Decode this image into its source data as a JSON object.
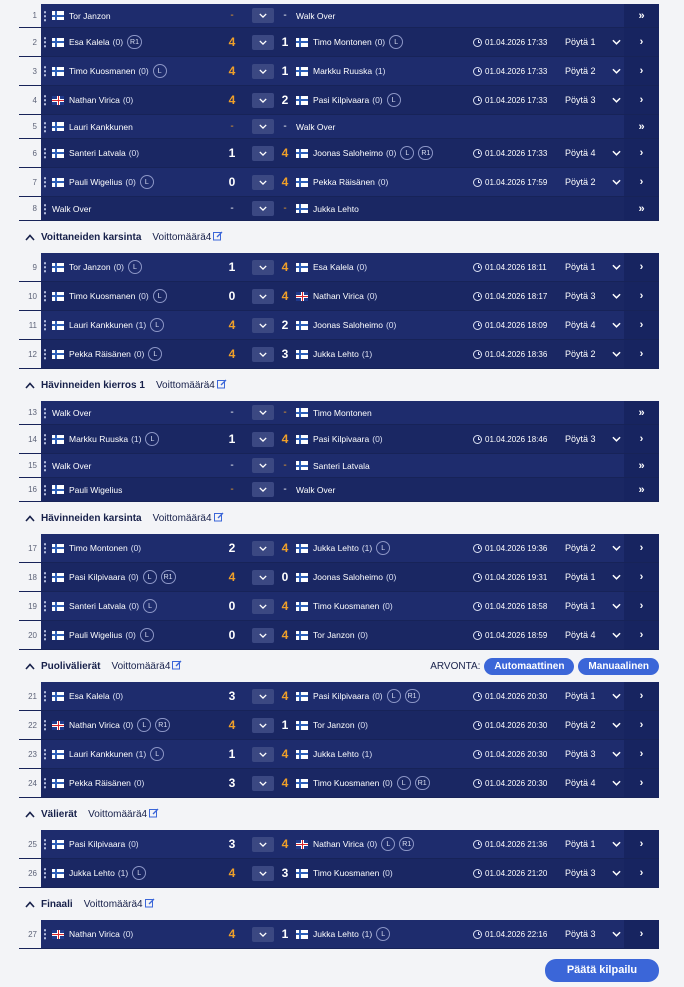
{
  "sections": [
    {
      "title": "",
      "wins": "",
      "matches": [
        {
          "n": "1",
          "p1": {
            "name": "Tor Janzon",
            "flag": "fi"
          },
          "s1": "-",
          "s2": "-",
          "p2": {
            "name": "Walk Over",
            "walkover": true
          },
          "wo": true
        },
        {
          "n": "2",
          "p1": {
            "name": "Esa Kalela",
            "flag": "fi",
            "count": "(0)",
            "badges": [
              "R1"
            ]
          },
          "s1": "4",
          "s2": "1",
          "p2": {
            "name": "Timo Montonen",
            "flag": "fi",
            "count": "(0)",
            "badges": [
              "L"
            ]
          },
          "time": "01.04.2026 17:33",
          "table": "Pöytä 1",
          "tall": true
        },
        {
          "n": "3",
          "p1": {
            "name": "Timo Kuosmanen",
            "flag": "fi",
            "count": "(0)",
            "badges": [
              "L"
            ]
          },
          "s1": "4",
          "s2": "1",
          "p2": {
            "name": "Markku Ruuska",
            "flag": "fi",
            "count": "(1)"
          },
          "time": "01.04.2026 17:33",
          "table": "Pöytä 2",
          "tall": true
        },
        {
          "n": "4",
          "p1": {
            "name": "Nathan Virica",
            "flag": "uk",
            "count": "(0)"
          },
          "s1": "4",
          "s2": "2",
          "p2": {
            "name": "Pasi Kilpivaara",
            "flag": "fi",
            "count": "(0)",
            "badges": [
              "L"
            ]
          },
          "time": "01.04.2026 17:33",
          "table": "Pöytä 3",
          "tall": true
        },
        {
          "n": "5",
          "p1": {
            "name": "Lauri Kankkunen",
            "flag": "fi"
          },
          "s1": "-",
          "s2": "-",
          "p2": {
            "name": "Walk Over",
            "walkover": true
          },
          "wo": true
        },
        {
          "n": "6",
          "p1": {
            "name": "Santeri Latvala",
            "flag": "fi",
            "count": "(0)"
          },
          "s1": "1",
          "s2": "4",
          "p2": {
            "name": "Joonas Saloheimo",
            "flag": "fi",
            "count": "(0)",
            "badges": [
              "L",
              "R1"
            ]
          },
          "time": "01.04.2026 17:33",
          "table": "Pöytä 4",
          "tall": true
        },
        {
          "n": "7",
          "p1": {
            "name": "Pauli Wigelius",
            "flag": "fi",
            "count": "(0)",
            "badges": [
              "L"
            ]
          },
          "s1": "0",
          "s2": "4",
          "p2": {
            "name": "Pekka Räisänen",
            "flag": "fi",
            "count": "(0)"
          },
          "time": "01.04.2026 17:59",
          "table": "Pöytä 2",
          "tall": true
        },
        {
          "n": "8",
          "p1": {
            "name": "Walk Over",
            "walkover": true
          },
          "s1": "-",
          "s2": "-",
          "p2": {
            "name": "Jukka Lehto",
            "flag": "fi"
          },
          "wo": true
        }
      ]
    },
    {
      "title": "Voittaneiden karsinta",
      "wins": "Voittomäärä4",
      "matches": [
        {
          "n": "9",
          "p1": {
            "name": "Tor Janzon",
            "flag": "fi",
            "count": "(0)",
            "badges": [
              "L"
            ]
          },
          "s1": "1",
          "s2": "4",
          "p2": {
            "name": "Esa Kalela",
            "flag": "fi",
            "count": "(0)"
          },
          "time": "01.04.2026 18:11",
          "table": "Pöytä 1",
          "tall": true
        },
        {
          "n": "10",
          "p1": {
            "name": "Timo Kuosmanen",
            "flag": "fi",
            "count": "(0)",
            "badges": [
              "L"
            ]
          },
          "s1": "0",
          "s2": "4",
          "p2": {
            "name": "Nathan Virica",
            "flag": "uk",
            "count": "(0)"
          },
          "time": "01.04.2026 18:17",
          "table": "Pöytä 3",
          "tall": true
        },
        {
          "n": "11",
          "p1": {
            "name": "Lauri Kankkunen",
            "flag": "fi",
            "count": "(1)",
            "badges": [
              "L"
            ]
          },
          "s1": "4",
          "s2": "2",
          "p2": {
            "name": "Joonas Saloheimo",
            "flag": "fi",
            "count": "(0)"
          },
          "time": "01.04.2026 18:09",
          "table": "Pöytä 4",
          "tall": true
        },
        {
          "n": "12",
          "p1": {
            "name": "Pekka Räisänen",
            "flag": "fi",
            "count": "(0)",
            "badges": [
              "L"
            ]
          },
          "s1": "4",
          "s2": "3",
          "p2": {
            "name": "Jukka Lehto",
            "flag": "fi",
            "count": "(1)"
          },
          "time": "01.04.2026 18:36",
          "table": "Pöytä 2",
          "tall": true
        }
      ]
    },
    {
      "title": "Hävinneiden kierros 1",
      "wins": "Voittomäärä4",
      "matches": [
        {
          "n": "13",
          "p1": {
            "name": "Walk Over",
            "walkover": true
          },
          "s1": "-",
          "s2": "-",
          "p2": {
            "name": "Timo Montonen",
            "flag": "fi"
          },
          "wo": true
        },
        {
          "n": "14",
          "p1": {
            "name": "Markku Ruuska",
            "flag": "fi",
            "count": "(1)",
            "badges": [
              "L"
            ]
          },
          "s1": "1",
          "s2": "4",
          "p2": {
            "name": "Pasi Kilpivaara",
            "flag": "fi",
            "count": "(0)"
          },
          "time": "01.04.2026 18:46",
          "table": "Pöytä 3",
          "tall": true
        },
        {
          "n": "15",
          "p1": {
            "name": "Walk Over",
            "walkover": true
          },
          "s1": "-",
          "s2": "-",
          "p2": {
            "name": "Santeri Latvala",
            "flag": "fi"
          },
          "wo": true
        },
        {
          "n": "16",
          "p1": {
            "name": "Pauli Wigelius",
            "flag": "fi"
          },
          "s1": "-",
          "s2": "-",
          "p2": {
            "name": "Walk Over",
            "walkover": true
          },
          "wo": true
        }
      ]
    },
    {
      "title": "Hävinneiden karsinta",
      "wins": "Voittomäärä4",
      "matches": [
        {
          "n": "17",
          "p1": {
            "name": "Timo Montonen",
            "flag": "fi",
            "count": "(0)"
          },
          "s1": "2",
          "s2": "4",
          "p2": {
            "name": "Jukka Lehto",
            "flag": "fi",
            "count": "(1)",
            "badges": [
              "L"
            ]
          },
          "time": "01.04.2026 19:36",
          "table": "Pöytä 2",
          "tall": true
        },
        {
          "n": "18",
          "p1": {
            "name": "Pasi Kilpivaara",
            "flag": "fi",
            "count": "(0)",
            "badges": [
              "L",
              "R1"
            ]
          },
          "s1": "4",
          "s2": "0",
          "p2": {
            "name": "Joonas Saloheimo",
            "flag": "fi",
            "count": "(0)"
          },
          "time": "01.04.2026 19:31",
          "table": "Pöytä 1",
          "tall": true
        },
        {
          "n": "19",
          "p1": {
            "name": "Santeri Latvala",
            "flag": "fi",
            "count": "(0)",
            "badges": [
              "L"
            ]
          },
          "s1": "0",
          "s2": "4",
          "p2": {
            "name": "Timo Kuosmanen",
            "flag": "fi",
            "count": "(0)"
          },
          "time": "01.04.2026 18:58",
          "table": "Pöytä 1",
          "tall": true
        },
        {
          "n": "20",
          "p1": {
            "name": "Pauli Wigelius",
            "flag": "fi",
            "count": "(0)",
            "badges": [
              "L"
            ]
          },
          "s1": "0",
          "s2": "4",
          "p2": {
            "name": "Tor Janzon",
            "flag": "fi",
            "count": "(0)"
          },
          "time": "01.04.2026 18:59",
          "table": "Pöytä 4",
          "tall": true
        }
      ]
    },
    {
      "title": "Puolivälierät",
      "wins": "Voittomäärä4",
      "arvonta": {
        "label": "ARVONTA:",
        "auto": "Automaattinen",
        "manual": "Manuaalinen"
      },
      "matches": [
        {
          "n": "21",
          "p1": {
            "name": "Esa Kalela",
            "flag": "fi",
            "count": "(0)"
          },
          "s1": "3",
          "s2": "4",
          "p2": {
            "name": "Pasi Kilpivaara",
            "flag": "fi",
            "count": "(0)",
            "badges": [
              "L",
              "R1"
            ]
          },
          "time": "01.04.2026 20:30",
          "table": "Pöytä 1",
          "tall": true
        },
        {
          "n": "22",
          "p1": {
            "name": "Nathan Virica",
            "flag": "uk",
            "count": "(0)",
            "badges": [
              "L",
              "R1"
            ]
          },
          "s1": "4",
          "s2": "1",
          "p2": {
            "name": "Tor Janzon",
            "flag": "fi",
            "count": "(0)"
          },
          "time": "01.04.2026 20:30",
          "table": "Pöytä 2",
          "tall": true
        },
        {
          "n": "23",
          "p1": {
            "name": "Lauri Kankkunen",
            "flag": "fi",
            "count": "(1)",
            "badges": [
              "L"
            ]
          },
          "s1": "1",
          "s2": "4",
          "p2": {
            "name": "Jukka Lehto",
            "flag": "fi",
            "count": "(1)"
          },
          "time": "01.04.2026 20:30",
          "table": "Pöytä 3",
          "tall": true
        },
        {
          "n": "24",
          "p1": {
            "name": "Pekka Räisänen",
            "flag": "fi",
            "count": "(0)"
          },
          "s1": "3",
          "s2": "4",
          "p2": {
            "name": "Timo Kuosmanen",
            "flag": "fi",
            "count": "(0)",
            "badges": [
              "L",
              "R1"
            ]
          },
          "time": "01.04.2026 20:30",
          "table": "Pöytä 4",
          "tall": true
        }
      ]
    },
    {
      "title": "Välierät",
      "wins": "Voittomäärä4",
      "matches": [
        {
          "n": "25",
          "p1": {
            "name": "Pasi Kilpivaara",
            "flag": "fi",
            "count": "(0)"
          },
          "s1": "3",
          "s2": "4",
          "p2": {
            "name": "Nathan Virica",
            "flag": "uk",
            "count": "(0)",
            "badges": [
              "L",
              "R1"
            ]
          },
          "time": "01.04.2026 21:36",
          "table": "Pöytä 1",
          "tall": true
        },
        {
          "n": "26",
          "p1": {
            "name": "Jukka Lehto",
            "flag": "fi",
            "count": "(1)",
            "badges": [
              "L"
            ]
          },
          "s1": "4",
          "s2": "3",
          "p2": {
            "name": "Timo Kuosmanen",
            "flag": "fi",
            "count": "(0)"
          },
          "time": "01.04.2026 21:20",
          "table": "Pöytä 3",
          "tall": true
        }
      ]
    },
    {
      "title": "Finaali",
      "wins": "Voittomäärä4",
      "matches": [
        {
          "n": "27",
          "p1": {
            "name": "Nathan Virica",
            "flag": "uk",
            "count": "(0)"
          },
          "s1": "4",
          "s2": "1",
          "p2": {
            "name": "Jukka Lehto",
            "flag": "fi",
            "count": "(1)",
            "badges": [
              "L"
            ]
          },
          "time": "01.04.2026 22:16",
          "table": "Pöytä 3",
          "tall": true
        }
      ]
    }
  ],
  "footer": {
    "finish": "Päätä kilpailu"
  },
  "icons": {
    "arrow_single": "›",
    "arrow_double": "»",
    "kebab": "⋮",
    "edit": "edit-icon"
  },
  "colors": {
    "row": "#1e2c6d",
    "accent": "#3b66d8",
    "winner_score": "#f0a029",
    "background": "#f3f4f7"
  }
}
